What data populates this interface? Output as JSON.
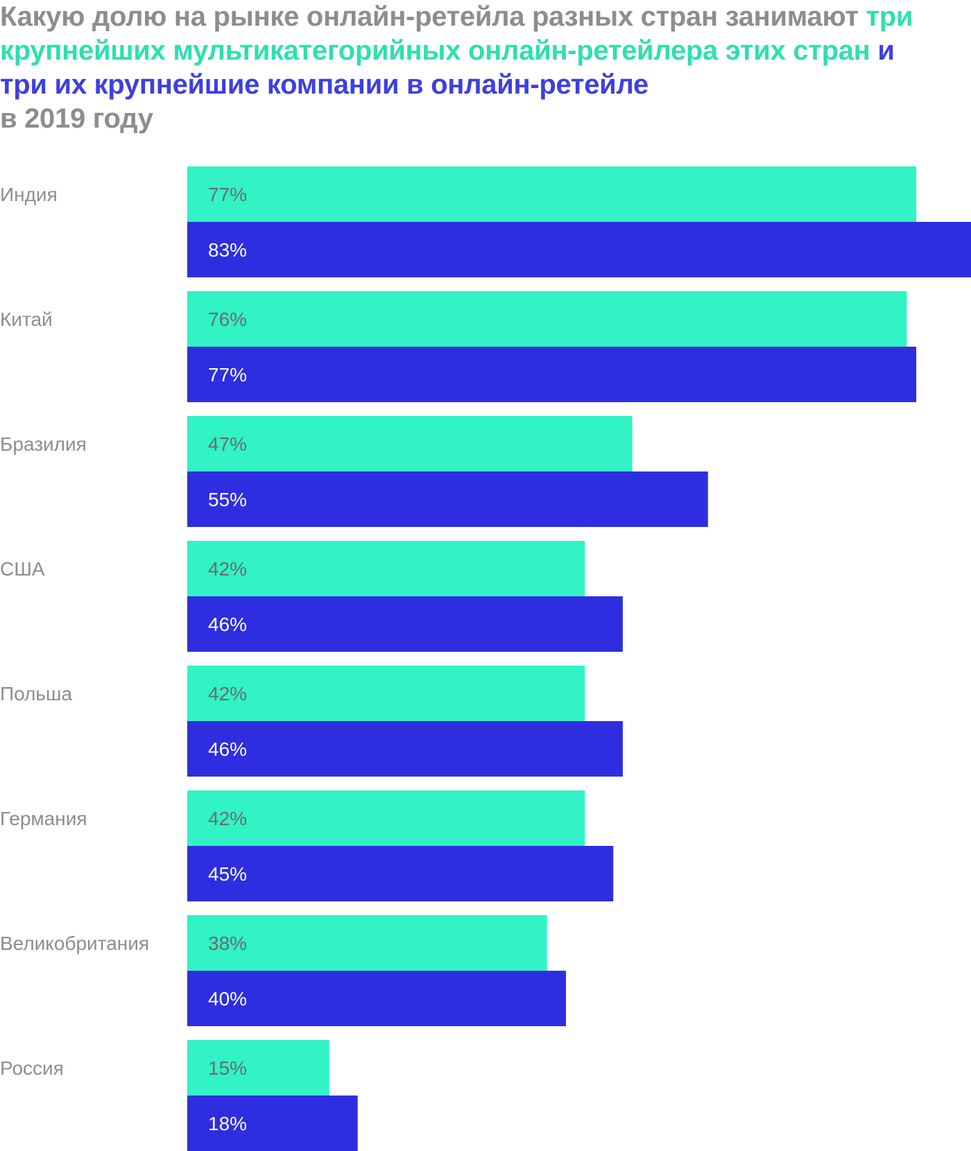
{
  "title": {
    "part1": "Какую долю на рынке онлайн-ретейла разных стран занимают ",
    "part2": "три крупнейших мультикатегорийных онлайн-ретейлера этих стран",
    "part3": " и три их крупнейшие компании в онлайн-ретейле",
    "part4": "в 2019 году"
  },
  "colors": {
    "series1": "#31f3c5",
    "series2": "#2e2ee0",
    "series1_text": "#6b6b6b",
    "series2_text": "#ffffff",
    "title_gray": "#8d8d8d"
  },
  "chart_data": {
    "type": "bar",
    "orientation": "horizontal",
    "title": "Какую долю на рынке онлайн-ретейла разных стран занимают три крупнейших мультикатегорийных онлайн-ретейлера этих стран и три их крупнейшие компании в онлайн-ретейле в 2019 году",
    "categories": [
      "Индия",
      "Китай",
      "Бразилия",
      "США",
      "Польша",
      "Германия",
      "Великобритания",
      "Россия"
    ],
    "series": [
      {
        "name": "три крупнейших мультикатегорийных онлайн-ретейлера этих стран",
        "values": [
          77,
          76,
          47,
          42,
          42,
          42,
          38,
          15
        ],
        "labels": [
          "77%",
          "76%",
          "47%",
          "42%",
          "42%",
          "42%",
          "38%",
          "15%"
        ]
      },
      {
        "name": "три их крупнейшие компании в онлайн-ретейле",
        "values": [
          83,
          77,
          55,
          46,
          46,
          45,
          40,
          18
        ],
        "labels": [
          "83%",
          "77%",
          "55%",
          "46%",
          "46%",
          "45%",
          "40%",
          "18%"
        ]
      }
    ],
    "unit": "%",
    "xlim": [
      0,
      83
    ],
    "grid": false,
    "legend": "in-title"
  }
}
